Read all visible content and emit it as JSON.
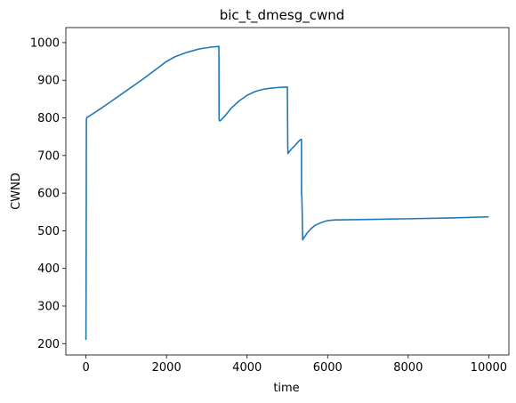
{
  "chart_data": {
    "type": "line",
    "title": "bic_t_dmesg_cwnd",
    "xlabel": "time",
    "ylabel": "CWND",
    "xlim": [
      -500,
      10500
    ],
    "ylim": [
      170,
      1040
    ],
    "xticks": [
      0,
      2000,
      4000,
      6000,
      8000,
      10000
    ],
    "xtick_labels": [
      "0",
      "2000",
      "4000",
      "6000",
      "8000",
      "10000"
    ],
    "yticks": [
      200,
      300,
      400,
      500,
      600,
      700,
      800,
      900,
      1000
    ],
    "ytick_labels": [
      "200",
      "300",
      "400",
      "500",
      "600",
      "700",
      "800",
      "900",
      "1000"
    ],
    "grid": false,
    "series": [
      {
        "color": "#1f77b4",
        "x": [
          0,
          5,
          10,
          20,
          100,
          300,
          600,
          1000,
          1400,
          1800,
          2000,
          2200,
          2500,
          2800,
          3100,
          3300,
          3305,
          3320,
          3350,
          3450,
          3600,
          3800,
          4000,
          4200,
          4400,
          4600,
          4800,
          5000,
          5010,
          5015,
          5030,
          5100,
          5200,
          5300,
          5340,
          5350,
          5352,
          5360,
          5370,
          5380,
          5400,
          5500,
          5600,
          5700,
          5800,
          5900,
          6000,
          6100,
          6200,
          6300,
          7000,
          8000,
          9000,
          10000
        ],
        "y": [
          210,
          460,
          795,
          801,
          806,
          820,
          842,
          872,
          902,
          934,
          950,
          962,
          974,
          983,
          988,
          990,
          795,
          792,
          794,
          805,
          825,
          845,
          860,
          870,
          876,
          879,
          881,
          882,
          730,
          705,
          708,
          717,
          728,
          740,
          743,
          743,
          596,
          590,
          540,
          476,
          480,
          495,
          507,
          515,
          520,
          524,
          527,
          528,
          529,
          529,
          530,
          532,
          534,
          537
        ]
      }
    ]
  }
}
